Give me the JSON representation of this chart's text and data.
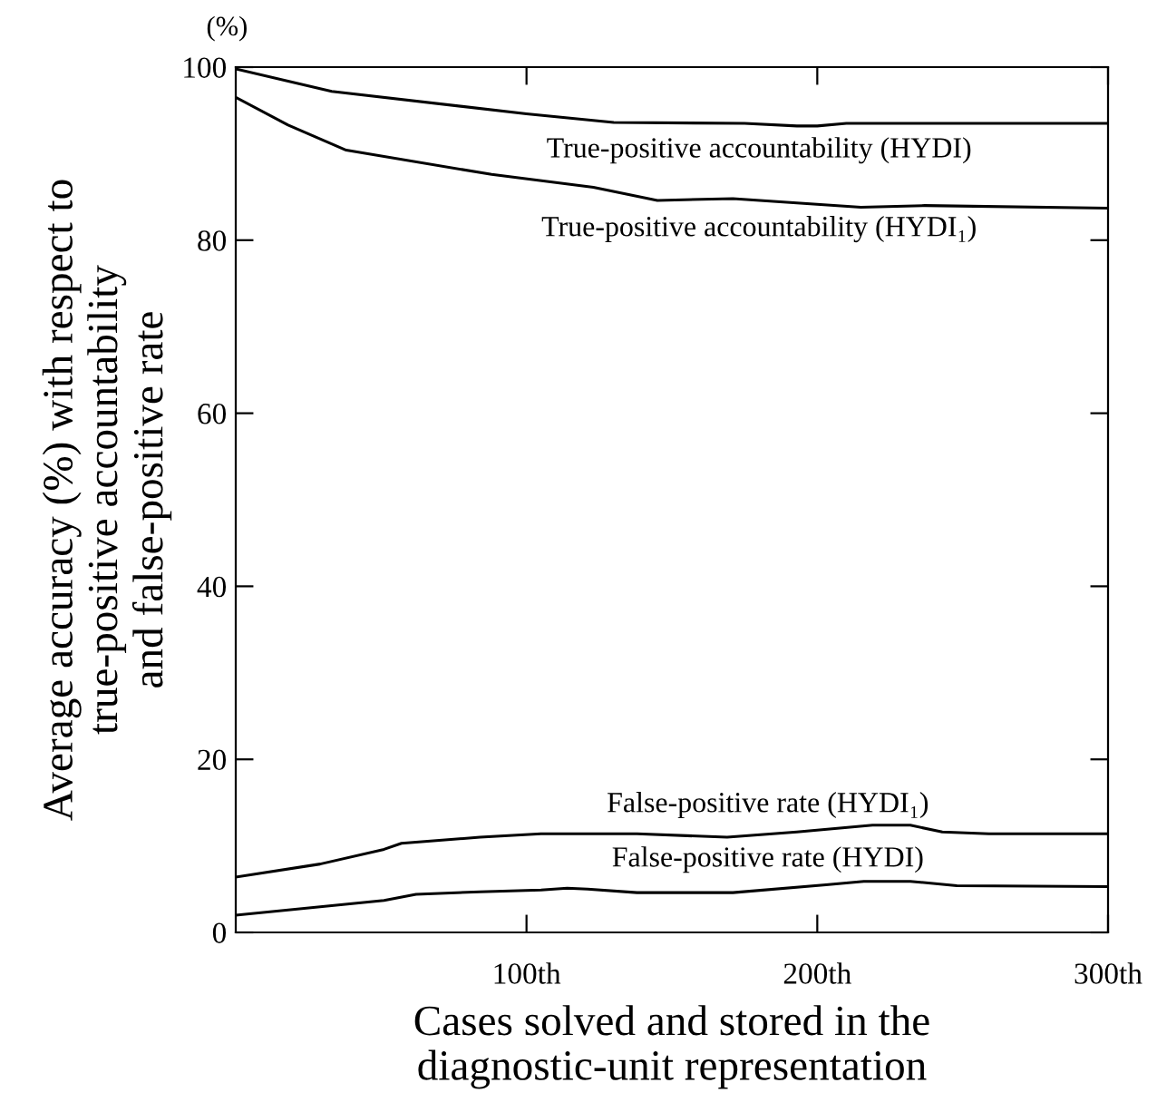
{
  "chart_data": {
    "type": "line",
    "xlabel": "Cases solved and stored in the\ndiagnostic-unit representation",
    "ylabel": "Average accuracy (%) with respect to\ntrue-positive accountability\nand false-positive rate",
    "annotations": [
      "(%)"
    ],
    "xlim": [
      0,
      300
    ],
    "xticks": [
      {
        "value": 100,
        "label": "100th"
      },
      {
        "value": 200,
        "label": "200th"
      },
      {
        "value": 300,
        "label": "300th"
      }
    ],
    "ylim": [
      0,
      100
    ],
    "yticks": [
      0,
      20,
      40,
      60,
      80,
      100
    ],
    "grid": false,
    "legend": false,
    "marker": "none",
    "line_style": "solid",
    "series": [
      {
        "name": "True-positive accountability (HYDI)",
        "color": "#000000",
        "x": [
          0,
          33,
          100,
          130,
          175,
          193,
          200,
          210,
          300
        ],
        "values": [
          99.8,
          97.2,
          94.6,
          93.6,
          93.5,
          93.2,
          93.2,
          93.5,
          93.5
        ]
      },
      {
        "name": "True-positive accountability (HYDI₁)",
        "color": "#000000",
        "x": [
          0,
          18,
          38,
          88,
          123,
          145,
          171,
          193,
          215,
          237,
          300
        ],
        "values": [
          96.5,
          93.3,
          90.4,
          87.6,
          86.1,
          84.6,
          84.8,
          84.3,
          83.8,
          84.0,
          83.7
        ]
      },
      {
        "name": "False-positive rate (HYDI₁)",
        "color": "#000000",
        "x": [
          0,
          29,
          51,
          57,
          84,
          105,
          138,
          169,
          193,
          219,
          232,
          243,
          259,
          300
        ],
        "values": [
          6.4,
          7.9,
          9.6,
          10.3,
          11.0,
          11.4,
          11.4,
          11.0,
          11.6,
          12.4,
          12.4,
          11.6,
          11.4,
          11.4
        ]
      },
      {
        "name": "False-positive rate (HYDI)",
        "color": "#000000",
        "x": [
          0,
          51,
          62,
          84,
          105,
          114,
          121,
          138,
          171,
          203,
          216,
          232,
          248,
          300
        ],
        "values": [
          2.0,
          3.7,
          4.4,
          4.7,
          4.9,
          5.1,
          5.0,
          4.6,
          4.6,
          5.5,
          5.9,
          5.9,
          5.4,
          5.3
        ]
      }
    ]
  }
}
